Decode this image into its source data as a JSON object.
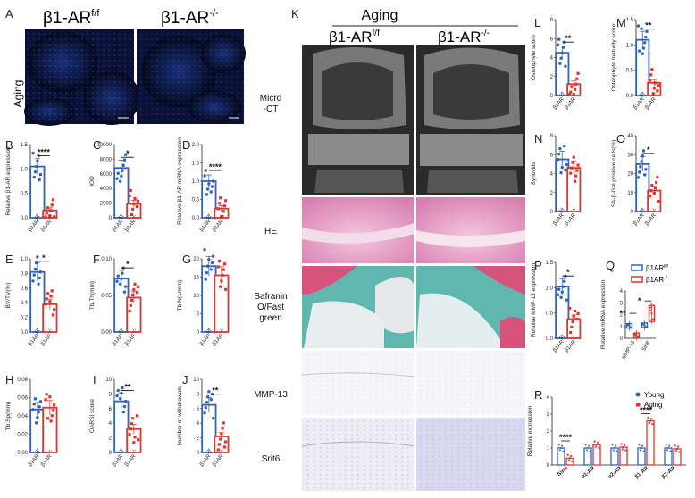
{
  "figure": {
    "panel_letters": {
      "A": "A",
      "B": "B",
      "C": "C",
      "D": "D",
      "E": "E",
      "F": "F",
      "G": "G",
      "H": "H",
      "I": "I",
      "J": "J",
      "K": "K",
      "L": "L",
      "M": "M",
      "N": "N",
      "O": "O",
      "P": "P",
      "Q": "Q",
      "R": "R"
    },
    "panelA": {
      "wt_label": "β1-AR",
      "wt_sup": "f/f",
      "ko_label": "β1-AR",
      "ko_sup": "-/-",
      "row_label": "Aging"
    },
    "panelK": {
      "header": "Aging",
      "wt_label": "β1-AR",
      "wt_sup": "f/f",
      "ko_label": "β1-AR",
      "ko_sup": "-/-",
      "rows": [
        {
          "line1": "Micro",
          "line2": "-CT"
        },
        {
          "line1": "HE",
          "line2": ""
        },
        {
          "line1": "Safranin",
          "line2": "O/Fast",
          "line3": "green"
        },
        {
          "line1": "MMP-13",
          "line2": ""
        },
        {
          "line1": "Srit6",
          "line2": ""
        }
      ]
    },
    "legendQ": {
      "wt": "β1AR",
      "wt_sup": "f/f",
      "ko": "β1AR",
      "ko_sup": "-/-"
    },
    "legendR": {
      "young": "Young",
      "aging": "Aging"
    },
    "colors": {
      "wt": "#2f63c0",
      "ko": "#e2342c"
    }
  },
  "chart_data": [
    {
      "id": "B",
      "type": "bar",
      "ylabel": "Relative β1-AR expression",
      "yticks": [
        "0.0",
        "0.5",
        "1.0",
        "1.5"
      ],
      "ylim": [
        0,
        1.5
      ],
      "categories": [
        "β1AR f/f",
        "β1AR -/-"
      ],
      "values": [
        1.05,
        0.15
      ],
      "sig": "****"
    },
    {
      "id": "C",
      "type": "bar",
      "ylabel": "IOD",
      "yticks": [
        "0",
        "2000",
        "4000",
        "6000",
        "8000",
        "10000"
      ],
      "ylim": [
        0,
        10000
      ],
      "categories": [
        "β1AR f/f",
        "β1AR -/-"
      ],
      "values": [
        6800,
        1900
      ],
      "sig": "*"
    },
    {
      "id": "D",
      "type": "bar",
      "ylabel": "Relative β1-AR mRNA expression",
      "yticks": [
        "0.0",
        "0.5",
        "1.0",
        "1.5",
        "2.0"
      ],
      "ylim": [
        0,
        2.0
      ],
      "categories": [
        "β1AR f/f",
        "β1AR -/-"
      ],
      "values": [
        1.0,
        0.25
      ],
      "sig": "****"
    },
    {
      "id": "E",
      "type": "bar",
      "ylabel": "BV/TV(%)",
      "yticks": [
        "0.0",
        "0.2",
        "0.4",
        "0.6",
        "0.8",
        "1.0"
      ],
      "ylim": [
        0,
        1.0
      ],
      "categories": [
        "β1AR f/f",
        "β1AR -/-"
      ],
      "values": [
        0.82,
        0.38
      ],
      "sig": "*"
    },
    {
      "id": "F",
      "type": "bar",
      "ylabel": "Tb.Th(mm)",
      "yticks": [
        "0.00",
        "0.05",
        "0.10"
      ],
      "ylim": [
        0,
        0.1
      ],
      "categories": [
        "β1AR f/f",
        "β1AR -/-"
      ],
      "values": [
        0.073,
        0.047
      ],
      "sig": "*"
    },
    {
      "id": "G",
      "type": "bar",
      "ylabel": "Tb.N(1/mm)",
      "yticks": [
        "0",
        "5",
        "10",
        "15",
        "20"
      ],
      "ylim": [
        0,
        20
      ],
      "categories": [
        "β1AR f/f",
        "β1AR -/-"
      ],
      "values": [
        18,
        15.5
      ],
      "sig": ""
    },
    {
      "id": "H",
      "type": "bar",
      "ylabel": "Tb.Sp(mm)",
      "yticks": [
        "0.00",
        "0.02",
        "0.04",
        "0.06",
        "0.08"
      ],
      "ylim": [
        0,
        0.08
      ],
      "categories": [
        "β1AR f/f",
        "β1AR -/-"
      ],
      "values": [
        0.047,
        0.049
      ],
      "sig": ""
    },
    {
      "id": "I",
      "type": "bar",
      "ylabel": "OARSI score",
      "yticks": [
        "0",
        "2",
        "4",
        "6",
        "8",
        "10"
      ],
      "ylim": [
        0,
        10
      ],
      "categories": [
        "β1AR f/f",
        "β1AR -/-"
      ],
      "values": [
        7,
        3.2
      ],
      "sig": "**"
    },
    {
      "id": "J",
      "type": "bar",
      "ylabel": "Number of withdrawals",
      "yticks": [
        "0",
        "2",
        "4",
        "6",
        "8",
        "10"
      ],
      "ylim": [
        0,
        10
      ],
      "categories": [
        "β1AR f/f",
        "β1AR -/-"
      ],
      "values": [
        6.5,
        2.2
      ],
      "sig": "**"
    },
    {
      "id": "L",
      "type": "bar",
      "ylabel": "Osteophyte score",
      "yticks": [
        "0",
        "2",
        "4",
        "6",
        "8"
      ],
      "ylim": [
        0,
        8
      ],
      "categories": [
        "β1AR f/f",
        "β1AR -/-"
      ],
      "values": [
        4.5,
        1.2
      ],
      "sig": "**"
    },
    {
      "id": "M",
      "type": "bar",
      "ylabel": "Osteophyte maturity score",
      "yticks": [
        "0.0",
        "0.5",
        "1.0",
        "1.5"
      ],
      "ylim": [
        0,
        1.5
      ],
      "categories": [
        "β1AR f/f",
        "β1AR -/-"
      ],
      "values": [
        1.1,
        0.25
      ],
      "sig": "**"
    },
    {
      "id": "N",
      "type": "bar",
      "ylabel": "Synovitis",
      "yticks": [
        "0",
        "2",
        "4",
        "6",
        "8"
      ],
      "ylim": [
        0,
        8
      ],
      "categories": [
        "β1AR f/f",
        "β1AR -/-"
      ],
      "values": [
        5.5,
        4.6
      ],
      "sig": ""
    },
    {
      "id": "O",
      "type": "bar",
      "ylabel": "SA-β-Gal positive cells(%)",
      "yticks": [
        "0",
        "10",
        "20",
        "30",
        "40"
      ],
      "ylim": [
        0,
        40
      ],
      "categories": [
        "β1AR f/f",
        "β1AR -/-"
      ],
      "values": [
        25,
        11
      ],
      "sig": "*"
    },
    {
      "id": "P",
      "type": "bar",
      "ylabel": "Relative MMP-13 expression",
      "yticks": [
        "0.0",
        "0.5",
        "1.0",
        "1.5"
      ],
      "ylim": [
        0,
        1.5
      ],
      "categories": [
        "β1AR f/f",
        "β1AR -/-"
      ],
      "values": [
        1.02,
        0.38
      ],
      "sig": "*"
    },
    {
      "id": "Q",
      "type": "box",
      "ylabel": "Relative mRNA expression",
      "yticks": [
        "0",
        "1",
        "2",
        "3",
        "4"
      ],
      "ylim": [
        0,
        4
      ],
      "categories": [
        "MMP-13",
        "Sirt6"
      ],
      "series": [
        {
          "name": "β1AR f/f",
          "values": [
            1.05,
            1.1
          ]
        },
        {
          "name": "β1AR -/-",
          "values": [
            0.25,
            2.1
          ]
        }
      ],
      "sig": [
        "**",
        "*"
      ]
    },
    {
      "id": "R",
      "type": "bar",
      "ylabel": "Relative expression",
      "yticks": [
        "0",
        "1",
        "2",
        "3",
        "4"
      ],
      "ylim": [
        0,
        4
      ],
      "categories": [
        "Sirt6",
        "α1-AR",
        "α2-AR",
        "β1-AR",
        "β2-AR"
      ],
      "series": [
        {
          "name": "Young",
          "values": [
            1.0,
            1.0,
            1.0,
            1.0,
            1.0
          ]
        },
        {
          "name": "Aging",
          "values": [
            0.4,
            1.2,
            1.05,
            2.6,
            0.95
          ]
        }
      ],
      "sig": [
        "****",
        "",
        "",
        "****",
        ""
      ]
    }
  ]
}
